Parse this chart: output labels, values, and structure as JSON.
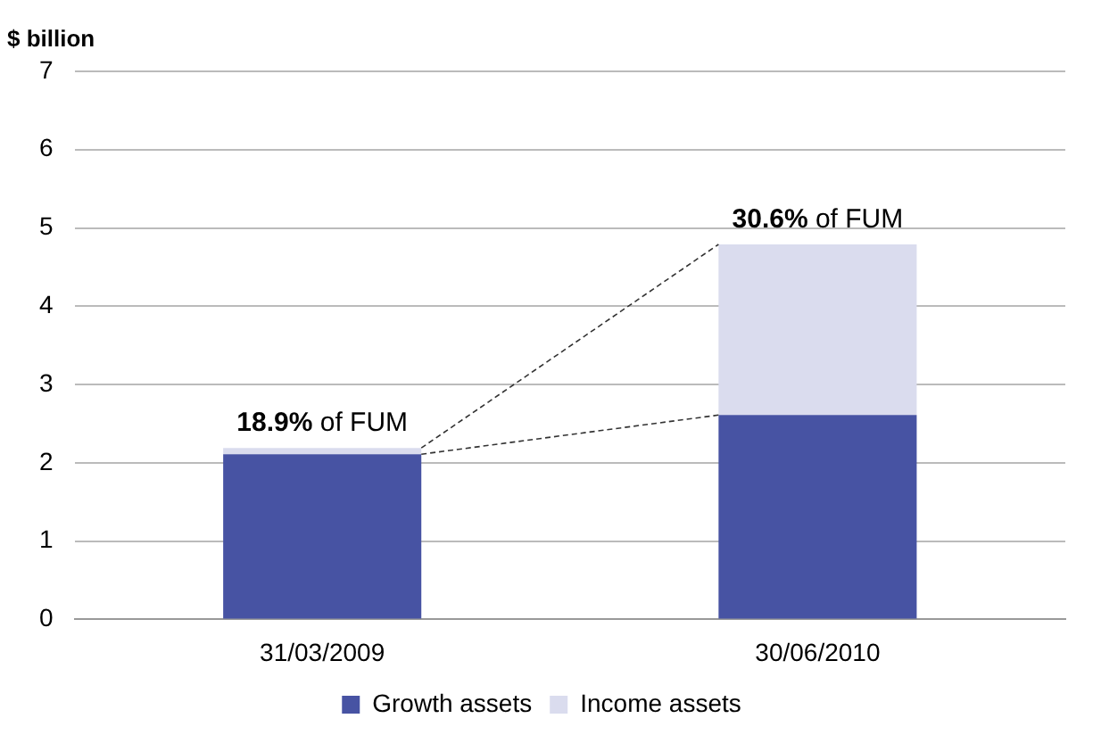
{
  "chart_data": {
    "type": "bar",
    "stacked": true,
    "ylabel": "$ billion",
    "categories": [
      "31/03/2009",
      "30/06/2010"
    ],
    "series": [
      {
        "name": "Growth assets",
        "color": "#4753a3",
        "values": [
          2.11,
          2.61
        ]
      },
      {
        "name": "Income assets",
        "color": "#dadcee",
        "values": [
          0.08,
          2.18
        ]
      }
    ],
    "ylim": [
      0,
      7
    ],
    "yticks": [
      0,
      1,
      2,
      3,
      4,
      5,
      6,
      7
    ],
    "grid": "y",
    "legend": "bottom",
    "annotations": [
      {
        "text": "18.9% of FUM",
        "x": "31/03/2009",
        "y": 2.19
      },
      {
        "text": "30.6% of FUM",
        "x": "30/06/2010",
        "y": 4.79
      }
    ]
  }
}
